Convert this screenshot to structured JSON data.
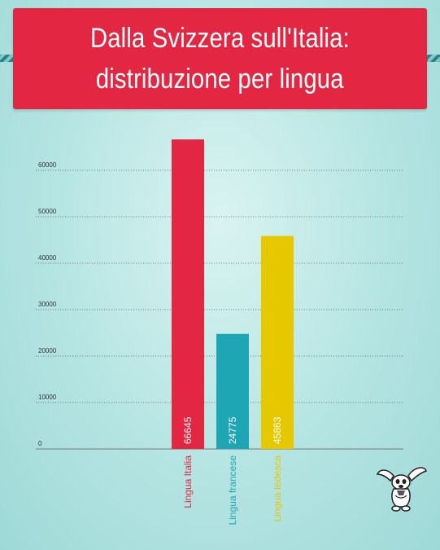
{
  "header": {
    "title_line1": "Dalla Svizzera sull'Italia:",
    "title_line2": "distribuzione per lingua"
  },
  "colors": {
    "banner": "#e32743",
    "italia": "#e32743",
    "francese": "#1fa6b4",
    "tedesca": "#e6c800"
  },
  "mascot": {
    "icon": "long-eared-dog-mascot-icon"
  },
  "chart_data": {
    "type": "bar",
    "title": "Dalla Svizzera sull'Italia: distribuzione per lingua",
    "xlabel": "",
    "ylabel": "",
    "ylim": [
      0,
      60000
    ],
    "yticks": [
      0,
      10000,
      20000,
      30000,
      40000,
      50000,
      60000
    ],
    "ytick_labels": [
      "0",
      "10000",
      "20000",
      "30000",
      "40000",
      "50000",
      "60000"
    ],
    "grid": true,
    "categories": [
      "Lingua Italia",
      "Lingua francese",
      "Lingua tedesca"
    ],
    "values": [
      66645,
      24775,
      45863
    ],
    "value_labels": [
      "66645",
      "24775",
      "45863"
    ],
    "bar_colors": [
      "#e32743",
      "#1fa6b4",
      "#e6c800"
    ]
  }
}
